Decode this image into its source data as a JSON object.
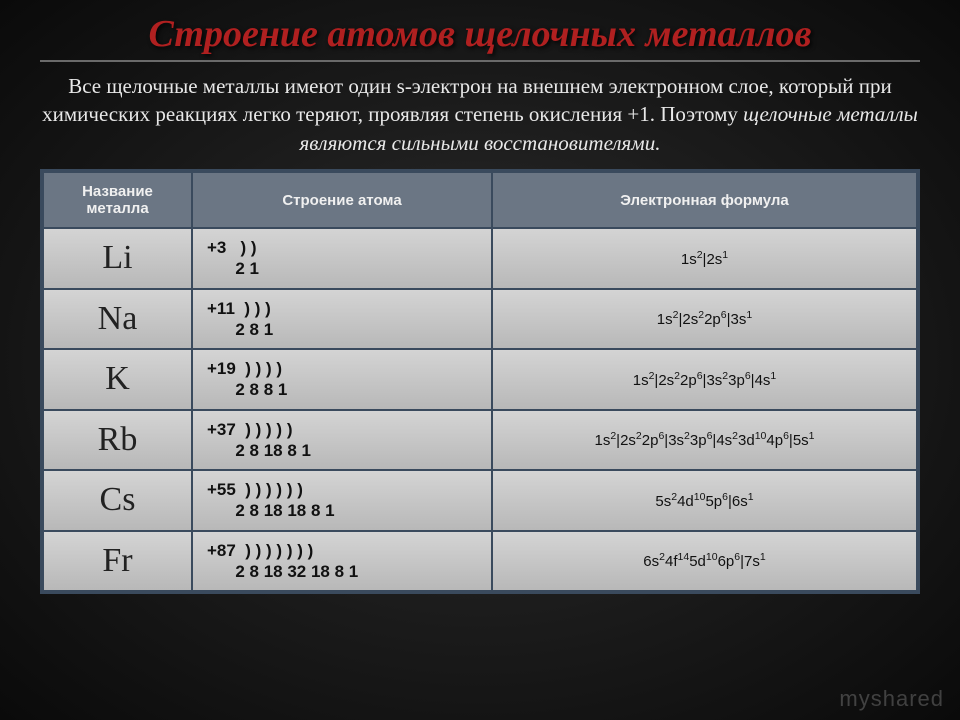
{
  "title": "Строение атомов щелочных металлов",
  "intro_plain": "Все щелочные металлы имеют один s-электрон на внешнем электронном слое, который при химических реакциях легко теряют, проявляя степень окисления +1. Поэтому ",
  "intro_em": "щелочные металлы являются сильными восстановителями.",
  "columns": {
    "c1": "Название металла",
    "c2": "Строение атома",
    "c3": "Электронная формула"
  },
  "rows": [
    {
      "sym": "Li",
      "struct": "+3   ) )\n      2 1",
      "formula": "1s<sup>2</sup>|2s<sup>1</sup>"
    },
    {
      "sym": "Na",
      "struct": "+11  ) ) )\n      2 8 1",
      "formula": "1s<sup>2</sup>|2s<sup>2</sup>2p<sup>6</sup>|3s<sup>1</sup>"
    },
    {
      "sym": "K",
      "struct": "+19  ) ) ) )\n      2 8 8 1",
      "formula": "1s<sup>2</sup>|2s<sup>2</sup>2p<sup>6</sup>|3s<sup>2</sup>3p<sup>6</sup>|4s<sup>1</sup>"
    },
    {
      "sym": "Rb",
      "struct": "+37  ) ) ) ) )\n      2 8 18 8 1",
      "formula": "1s<sup>2</sup>|2s<sup>2</sup>2p<sup>6</sup>|3s<sup>2</sup>3p<sup>6</sup>|4s<sup>2</sup>3d<sup>10</sup>4p<sup>6</sup>|5s<sup>1</sup>"
    },
    {
      "sym": "Cs",
      "struct": "+55  ) ) ) ) ) )\n      2 8 18 18 8 1",
      "formula": "5s<sup>2</sup>4d<sup>10</sup>5p<sup>6</sup>|6s<sup>1</sup>"
    },
    {
      "sym": "Fr",
      "struct": "+87  ) ) ) ) ) ) )\n      2 8 18 32 18 8 1",
      "formula": "6s<sup>2</sup>4f<sup>14</sup>5d<sup>10</sup>6p<sup>6</sup>|7s<sup>1</sup>"
    }
  ],
  "watermark": "myshared",
  "style": {
    "bg_gradient_center": "#2d2d2d",
    "bg_gradient_edge": "#0a0a0a",
    "title_color": "#b02020",
    "intro_color": "#e8e8e8",
    "table_border": "#3a4a5d",
    "th_bg": "#6b7684",
    "td_bg_top": "#d4d4d4",
    "td_bg_bottom": "#b8b8b8",
    "title_fontsize": 38,
    "intro_fontsize": 21,
    "symbol_fontsize": 34,
    "struct_fontsize": 17,
    "formula_fontsize": 15
  }
}
